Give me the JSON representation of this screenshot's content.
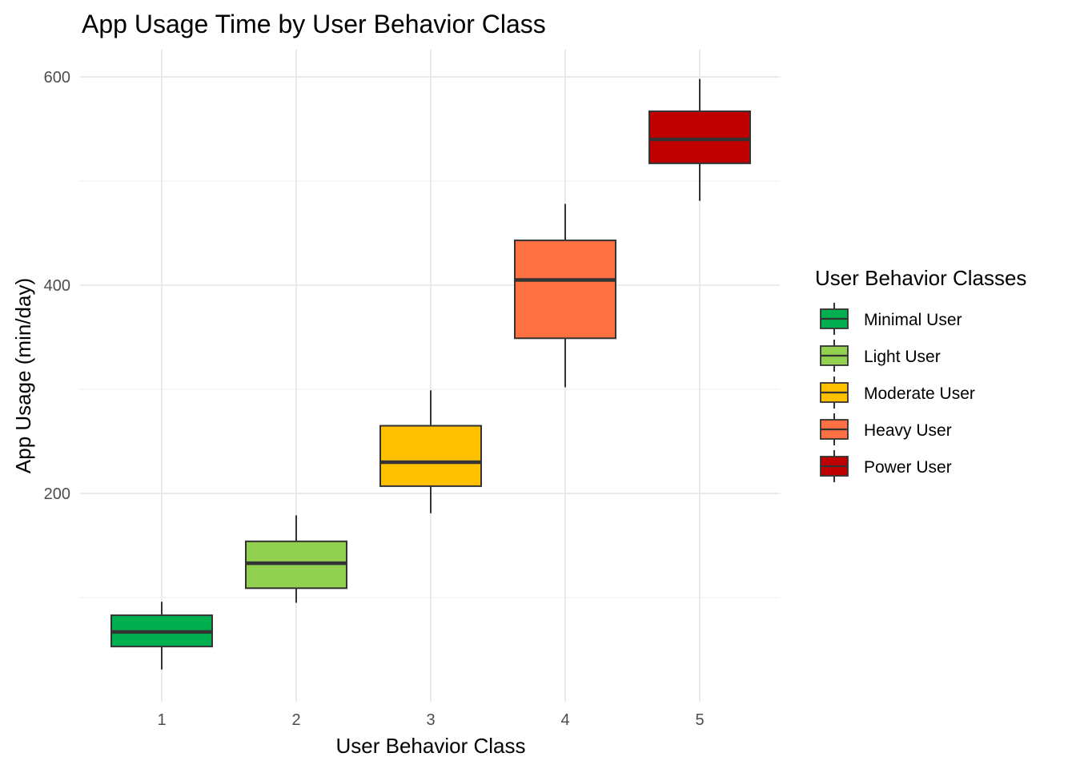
{
  "chart_data": {
    "type": "boxplot",
    "title": "App Usage Time by User Behavior Class",
    "xlabel": "User Behavior Class",
    "ylabel": "App Usage (min/day)",
    "categories": [
      "1",
      "2",
      "3",
      "4",
      "5"
    ],
    "y_ticks": [
      200,
      400,
      600
    ],
    "ylim": [
      0,
      630
    ],
    "grid": true,
    "legend": {
      "title": "User Behavior Classes",
      "position": "right",
      "entries": [
        "Minimal User",
        "Light User",
        "Moderate User",
        "Heavy User",
        "Power User"
      ]
    },
    "colors": [
      "#00B050",
      "#92D050",
      "#FFC000",
      "#FF7043",
      "#C00000"
    ],
    "boxes": [
      {
        "category": "1",
        "min": 31,
        "q1": 53,
        "median": 67,
        "q3": 83,
        "max": 96
      },
      {
        "category": "2",
        "min": 95,
        "q1": 109,
        "median": 133,
        "q3": 154,
        "max": 179
      },
      {
        "category": "3",
        "min": 181,
        "q1": 207,
        "median": 230,
        "q3": 265,
        "max": 299
      },
      {
        "category": "4",
        "min": 302,
        "q1": 349,
        "median": 405,
        "q3": 443,
        "max": 478
      },
      {
        "category": "5",
        "min": 481,
        "q1": 517,
        "median": 540,
        "q3": 567,
        "max": 598
      }
    ]
  }
}
